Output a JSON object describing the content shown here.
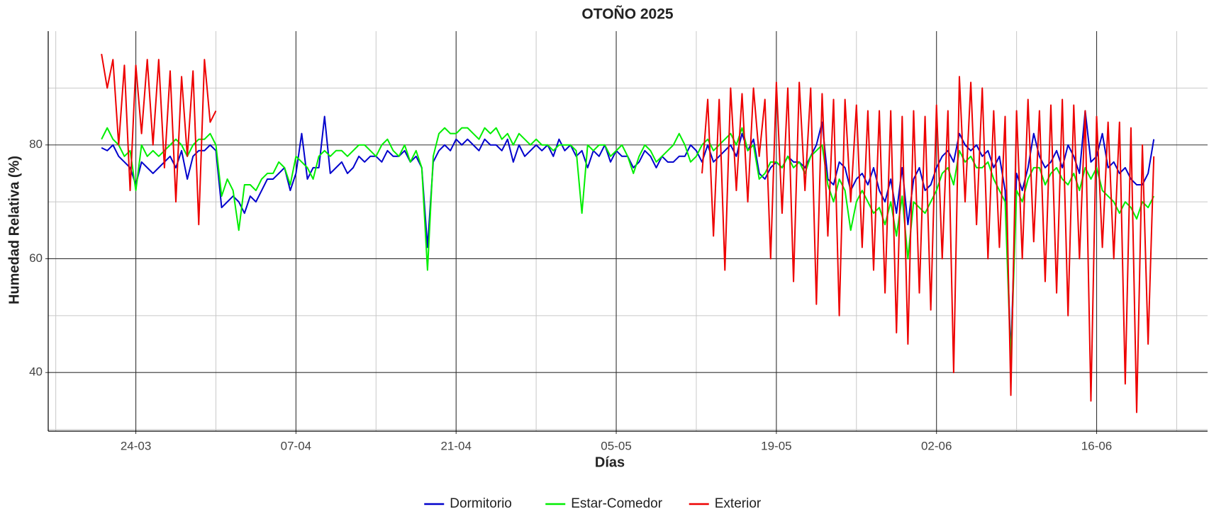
{
  "chart_data": {
    "type": "line",
    "title": "OTOÑO 2025",
    "x_label": "Días",
    "y_label": "Humedad Relativa (%)",
    "xlim": [
      75.34,
      176.7
    ],
    "ylim": [
      29.7,
      100
    ],
    "xticks": [
      {
        "value": 83,
        "label": "24-03"
      },
      {
        "value": 97,
        "label": "07-04"
      },
      {
        "value": 111,
        "label": "21-04"
      },
      {
        "value": 125,
        "label": "05-05"
      },
      {
        "value": 139,
        "label": "19-05"
      },
      {
        "value": 153,
        "label": "02-06"
      },
      {
        "value": 167,
        "label": "16-06"
      }
    ],
    "yticks": [
      40,
      60,
      80
    ],
    "grid": true,
    "legend": "bottom",
    "x": [
      80,
      80.5,
      81,
      81.5,
      82,
      82.5,
      83,
      83.5,
      84,
      84.5,
      85,
      85.5,
      86,
      86.5,
      87,
      87.5,
      88,
      88.5,
      89,
      89.5,
      90,
      90.5,
      91,
      91.5,
      92,
      92.5,
      93,
      93.5,
      94,
      94.5,
      95,
      95.5,
      96,
      96.5,
      97,
      97.5,
      98,
      98.5,
      99,
      99.5,
      100,
      100.5,
      101,
      101.5,
      102,
      102.5,
      103,
      103.5,
      104,
      104.5,
      105,
      105.5,
      106,
      106.5,
      107,
      107.5,
      108,
      108.5,
      109,
      109.5,
      110,
      110.5,
      111,
      111.5,
      112,
      112.5,
      113,
      113.5,
      114,
      114.5,
      115,
      115.5,
      116,
      116.5,
      117,
      117.5,
      118,
      118.5,
      119,
      119.5,
      120,
      120.5,
      121,
      121.5,
      122,
      122.5,
      123,
      123.5,
      124,
      124.5,
      125,
      125.5,
      126,
      126.5,
      127,
      127.5,
      128,
      128.5,
      129,
      129.5,
      130,
      130.5,
      131,
      131.5,
      132,
      132.5,
      133,
      133.5,
      134,
      134.5,
      135,
      135.5,
      136,
      136.5,
      137,
      137.5,
      138,
      138.5,
      139,
      139.5,
      140,
      140.5,
      141,
      141.5,
      142,
      142.5,
      143,
      143.5,
      144,
      144.5,
      145,
      145.5,
      146,
      146.5,
      147,
      147.5,
      148,
      148.5,
      149,
      149.5,
      150,
      150.5,
      151,
      151.5,
      152,
      152.5,
      153,
      153.5,
      154,
      154.5,
      155,
      155.5,
      156,
      156.5,
      157,
      157.5,
      158,
      158.5,
      159,
      159.5,
      160,
      160.5,
      161,
      161.5,
      162,
      162.5,
      163,
      163.5,
      164,
      164.5,
      165,
      165.5,
      166,
      166.5,
      167,
      167.5,
      168,
      168.5,
      169,
      169.5,
      170,
      170.5,
      171,
      171.5,
      172
    ],
    "series": [
      {
        "name": "Dormitorio",
        "color": "#0000cc",
        "values": [
          79.5,
          79,
          80,
          78,
          77,
          76,
          73,
          77,
          76,
          75,
          76,
          77,
          78,
          76,
          79,
          74,
          78,
          79,
          79,
          80,
          79,
          69,
          70,
          71,
          70,
          68,
          71,
          70,
          72,
          74,
          74,
          75,
          76,
          72,
          75,
          82,
          74,
          76,
          76,
          85,
          75,
          76,
          77,
          75,
          76,
          78,
          77,
          78,
          78,
          77,
          79,
          78,
          78,
          79,
          77,
          78,
          76,
          62,
          77,
          79,
          80,
          79,
          81,
          80,
          81,
          80,
          79,
          81,
          80,
          80,
          79,
          81,
          77,
          80,
          78,
          79,
          80,
          79,
          80,
          78,
          81,
          79,
          80,
          78,
          79,
          76,
          79,
          78,
          80,
          77,
          79,
          78,
          78,
          76,
          77,
          79,
          78,
          76,
          78,
          77,
          77,
          78,
          78,
          80,
          79,
          77,
          80,
          77,
          78,
          79,
          80,
          78,
          82,
          79,
          81,
          75,
          74,
          76,
          77,
          76,
          78,
          77,
          77,
          76,
          78,
          80,
          84,
          74,
          73,
          77,
          76,
          72,
          74,
          75,
          73,
          76,
          72,
          70,
          74,
          68,
          76,
          66,
          74,
          76,
          72,
          73,
          76,
          78,
          79,
          77,
          82,
          80,
          79,
          80,
          78,
          79,
          76,
          78,
          72,
          43,
          75,
          72,
          76,
          82,
          78,
          76,
          77,
          79,
          76,
          80,
          78,
          75,
          86,
          77,
          78,
          82,
          76,
          77,
          75,
          76,
          74,
          73,
          73,
          75,
          81
        ]
      },
      {
        "name": "Estar-Comedor",
        "color": "#00ee00",
        "values": [
          81,
          83,
          81,
          80,
          78,
          79,
          72,
          80,
          78,
          79,
          78,
          79,
          80,
          81,
          80,
          78,
          80,
          81,
          81,
          82,
          80,
          71,
          74,
          72,
          65,
          73,
          73,
          72,
          74,
          75,
          75,
          77,
          76,
          73,
          78,
          77,
          76,
          74,
          78,
          79,
          78,
          79,
          79,
          78,
          79,
          80,
          80,
          79,
          78,
          80,
          81,
          79,
          78,
          80,
          77,
          79,
          76,
          58,
          78,
          82,
          83,
          82,
          82,
          83,
          83,
          82,
          81,
          83,
          82,
          83,
          81,
          82,
          80,
          82,
          81,
          80,
          81,
          80,
          80,
          79,
          80,
          80,
          80,
          79,
          68,
          80,
          79,
          80,
          80,
          78,
          79,
          80,
          78,
          75,
          78,
          80,
          79,
          77,
          78,
          79,
          80,
          82,
          80,
          77,
          78,
          80,
          81,
          79,
          80,
          81,
          82,
          80,
          83,
          79,
          80,
          74,
          75,
          77,
          77,
          76,
          78,
          76,
          77,
          75,
          78,
          79,
          80,
          73,
          70,
          74,
          72,
          65,
          70,
          72,
          70,
          68,
          69,
          66,
          70,
          64,
          71,
          60,
          70,
          69,
          68,
          70,
          72,
          75,
          76,
          73,
          79,
          77,
          78,
          76,
          76,
          77,
          74,
          72,
          70,
          42,
          72,
          70,
          74,
          76,
          76,
          73,
          75,
          76,
          74,
          73,
          75,
          72,
          76,
          74,
          76,
          72,
          71,
          70,
          68,
          70,
          69,
          67,
          70,
          69,
          71
        ]
      },
      {
        "name": "Exterior",
        "color": "#ee0000",
        "values": [
          96,
          90,
          95,
          80,
          94,
          72,
          94,
          82,
          95,
          80,
          95,
          76,
          93,
          70,
          92,
          78,
          93,
          66,
          95,
          84,
          86,
          null,
          null,
          null,
          null,
          null,
          null,
          null,
          null,
          null,
          null,
          null,
          null,
          null,
          null,
          null,
          null,
          null,
          null,
          null,
          null,
          null,
          null,
          null,
          null,
          null,
          null,
          null,
          null,
          null,
          null,
          null,
          null,
          null,
          null,
          null,
          null,
          null,
          null,
          null,
          null,
          null,
          null,
          null,
          null,
          null,
          null,
          null,
          null,
          null,
          null,
          null,
          null,
          null,
          null,
          null,
          null,
          null,
          null,
          null,
          null,
          null,
          null,
          null,
          null,
          null,
          null,
          null,
          null,
          null,
          null,
          null,
          null,
          null,
          null,
          null,
          null,
          null,
          null,
          null,
          null,
          null,
          null,
          null,
          null,
          75,
          88,
          64,
          88,
          58,
          90,
          72,
          89,
          70,
          90,
          78,
          88,
          60,
          91,
          68,
          90,
          56,
          91,
          72,
          90,
          52,
          89,
          64,
          88,
          50,
          88,
          70,
          87,
          62,
          86,
          58,
          86,
          54,
          86,
          47,
          85,
          45,
          86,
          54,
          85,
          51,
          87,
          60,
          86,
          40,
          92,
          70,
          91,
          66,
          90,
          60,
          86,
          62,
          85,
          36,
          86,
          60,
          88,
          63,
          86,
          56,
          87,
          54,
          88,
          50,
          87,
          60,
          86,
          35,
          85,
          62,
          84,
          60,
          84,
          38,
          83,
          33,
          80,
          45,
          78
        ]
      }
    ]
  }
}
